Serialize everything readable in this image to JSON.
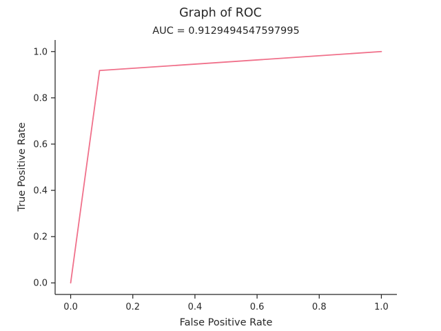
{
  "chart_data": {
    "type": "line",
    "title": "Graph of ROC",
    "subtitle": "AUC = 0.9129494547597995",
    "xlabel": "False Positive Rate",
    "ylabel": "True Positive Rate",
    "xlim": [
      -0.05,
      1.05
    ],
    "ylim": [
      -0.05,
      1.05
    ],
    "xticks": [
      "0.0",
      "0.2",
      "0.4",
      "0.6",
      "0.8",
      "1.0"
    ],
    "yticks": [
      "0.0",
      "0.2",
      "0.4",
      "0.6",
      "0.8",
      "1.0"
    ],
    "grid": false,
    "series": [
      {
        "color": "#f0708a",
        "x": [
          0.0,
          0.093,
          1.0
        ],
        "y": [
          0.0,
          0.918,
          1.0
        ]
      }
    ]
  }
}
